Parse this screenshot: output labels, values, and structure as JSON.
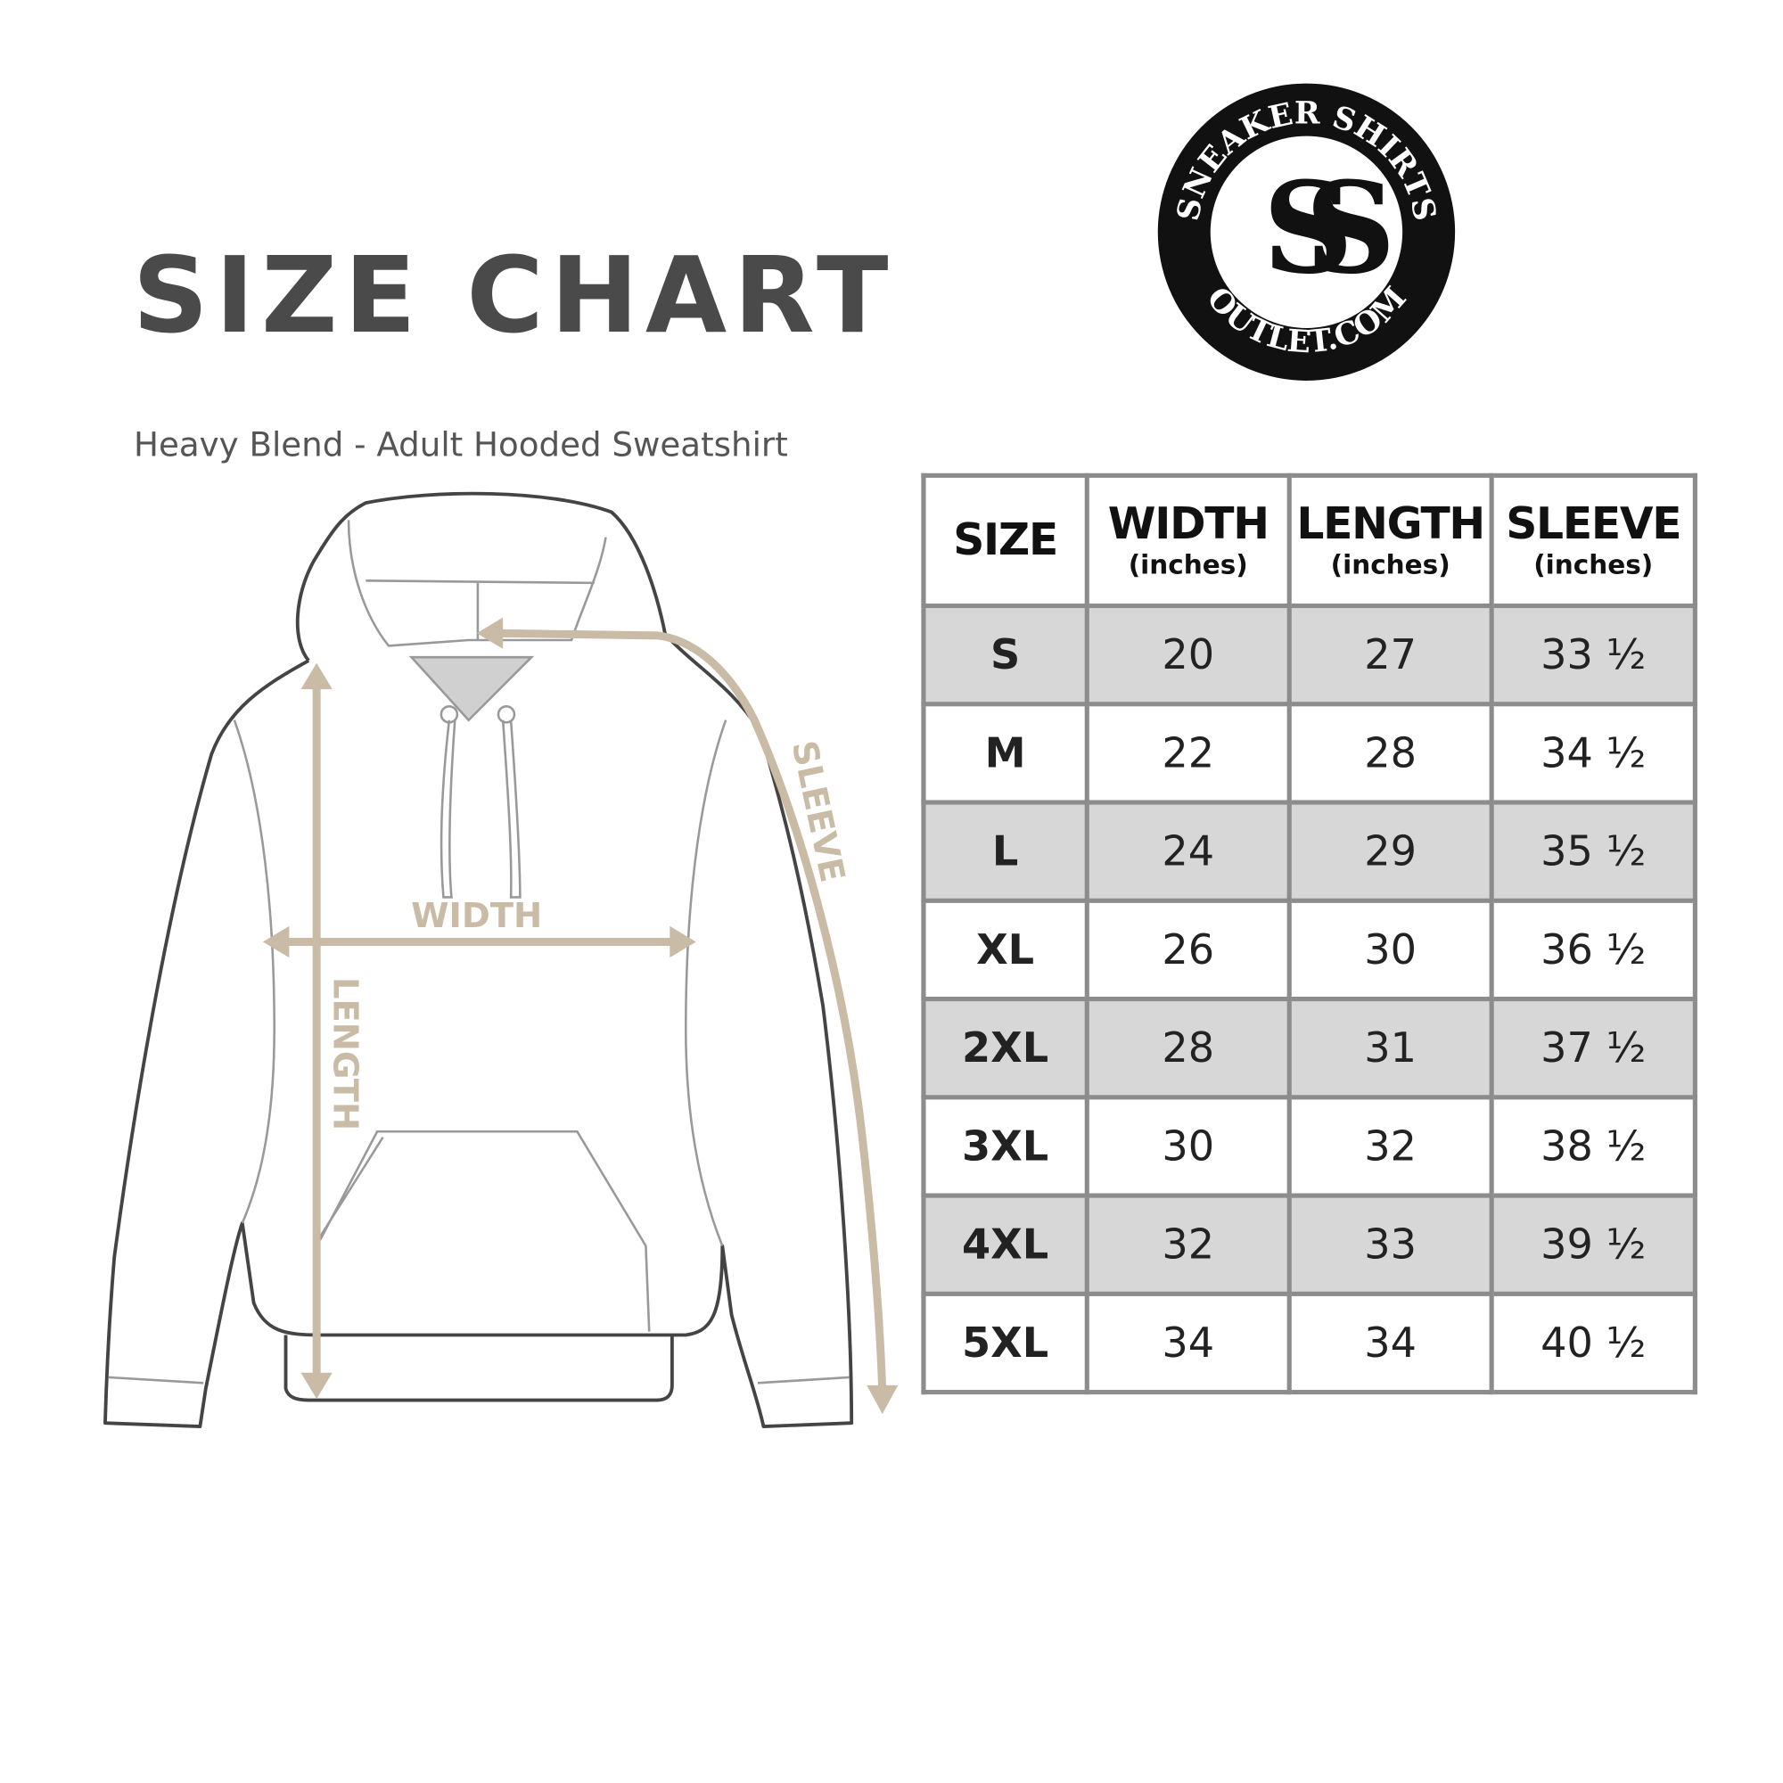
{
  "header": {
    "title": "SIZE CHART",
    "subtitle": "Heavy Blend - Adult Hooded Sweatshirt"
  },
  "logo": {
    "top_text": "SNEAKER SHIRTS",
    "bottom_text": "OUTLET.COM",
    "monogram": "SS"
  },
  "diagram": {
    "width_label": "WIDTH",
    "length_label": "LENGTH",
    "sleeve_label": "SLEEVE",
    "arrow_color": "#c9bba5",
    "outline_color": "#444444"
  },
  "table": {
    "columns": [
      {
        "label": "SIZE",
        "unit": ""
      },
      {
        "label": "WIDTH",
        "unit": "(inches)"
      },
      {
        "label": "LENGTH",
        "unit": "(inches)"
      },
      {
        "label": "SLEEVE",
        "unit": "(inches)"
      }
    ],
    "rows": [
      [
        "S",
        "20",
        "27",
        "33 ½"
      ],
      [
        "M",
        "22",
        "28",
        "34 ½"
      ],
      [
        "L",
        "24",
        "29",
        "35 ½"
      ],
      [
        "XL",
        "26",
        "30",
        "36 ½"
      ],
      [
        "2XL",
        "28",
        "31",
        "37 ½"
      ],
      [
        "3XL",
        "30",
        "32",
        "38 ½"
      ],
      [
        "4XL",
        "32",
        "33",
        "39 ½"
      ],
      [
        "5XL",
        "34",
        "34",
        "40 ½"
      ]
    ],
    "shade_color": "#d7d7d7",
    "border_color": "#8c8c8c"
  }
}
